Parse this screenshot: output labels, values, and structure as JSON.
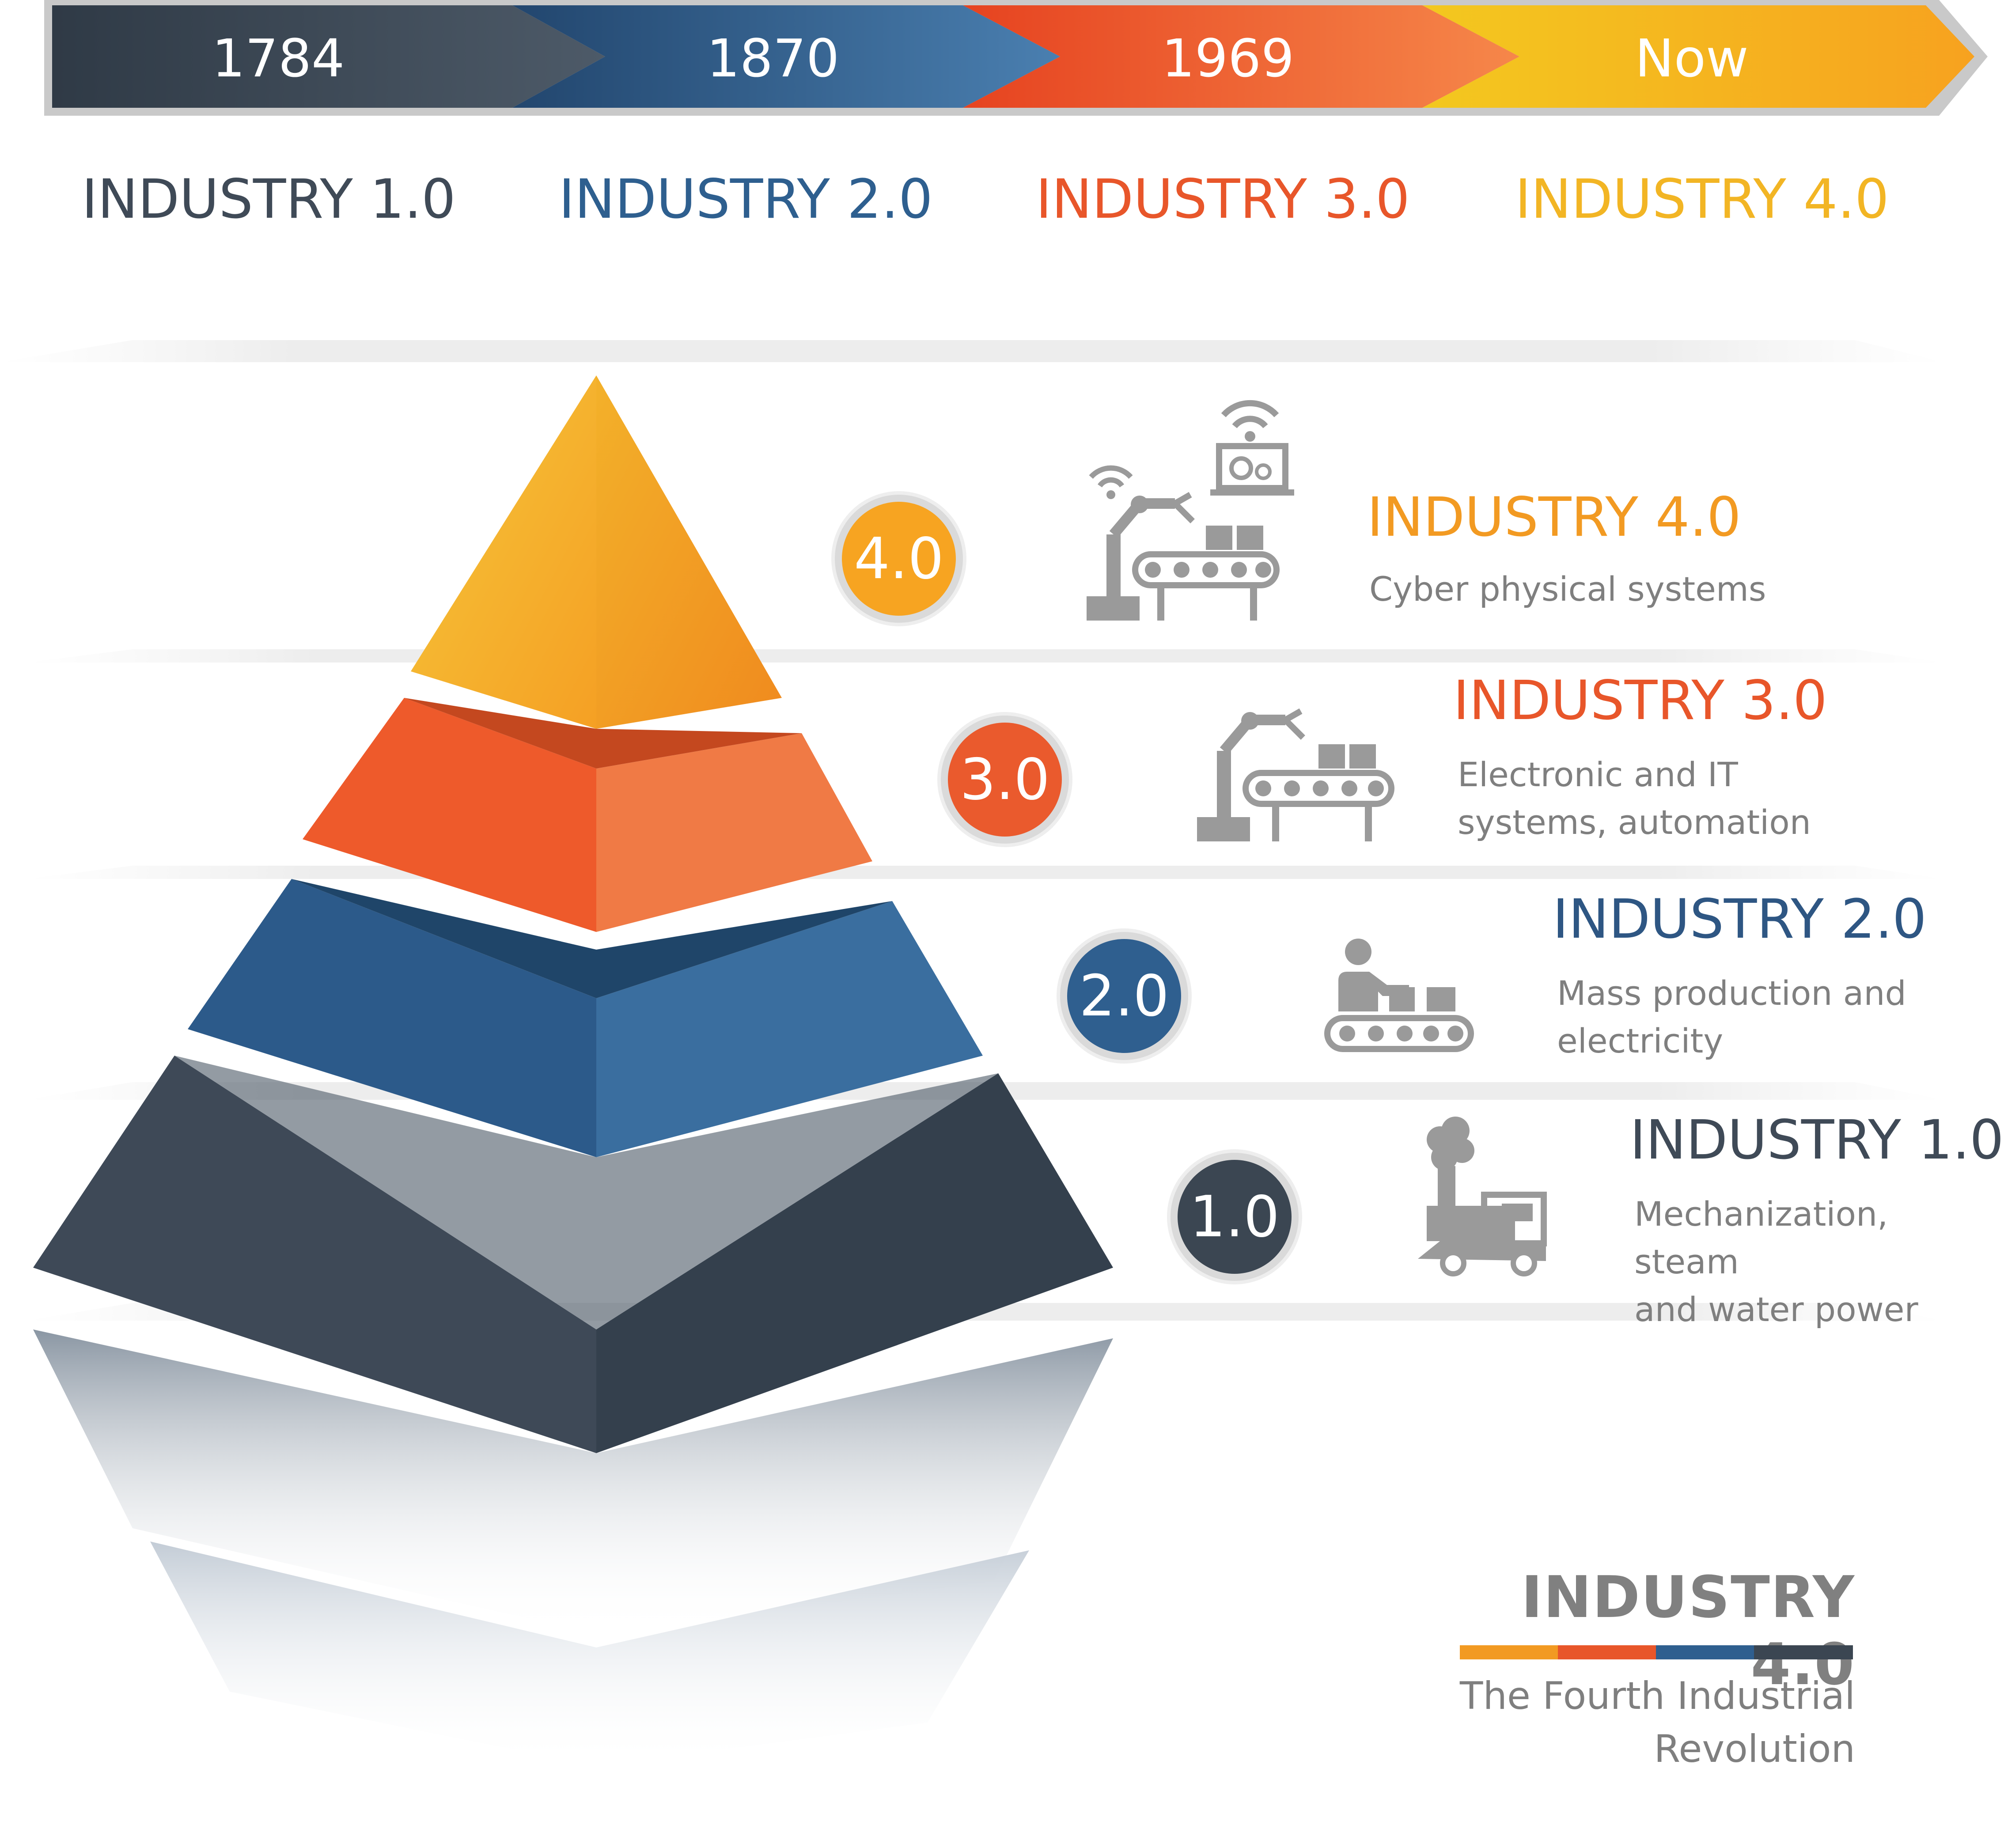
{
  "timeline": {
    "eras": [
      {
        "year": "1784",
        "color": "#3b4652"
      },
      {
        "year": "1870",
        "color": "#2f5f8f"
      },
      {
        "year": "1969",
        "color": "#ea5a2d"
      },
      {
        "year": "Now",
        "color": "#f3b21f"
      }
    ],
    "titles": [
      {
        "text": "INDUSTRY 1.0",
        "color": "#3f4a57"
      },
      {
        "text": "INDUSTRY 2.0",
        "color": "#2e5f8f"
      },
      {
        "text": "INDUSTRY 3.0",
        "color": "#e8562a"
      },
      {
        "text": "INDUSTRY 4.0",
        "color": "#f2b524"
      }
    ]
  },
  "levels": [
    {
      "badge": "4.0",
      "title": "INDUSTRY 4.0",
      "description": "Cyber physical systems",
      "title_color": "#f29a22",
      "badge_color": "#f7a421",
      "icon": "robot-arm-network-icon"
    },
    {
      "badge": "3.0",
      "title": "INDUSTRY 3.0",
      "description": "Electronic and IT\nsystems, automation",
      "title_color": "#e8562a",
      "badge_color": "#ea5a2d",
      "icon": "robot-arm-conveyor-icon"
    },
    {
      "badge": "2.0",
      "title": "INDUSTRY 2.0",
      "description": "Mass production and\nelectricity",
      "title_color": "#2e5683",
      "badge_color": "#2f5f8f",
      "icon": "worker-conveyor-icon"
    },
    {
      "badge": "1.0",
      "title": "INDUSTRY 1.0",
      "description": "Mechanization, steam\nand water power",
      "title_color": "#3f4a57",
      "badge_color": "#3b4652",
      "icon": "steam-locomotive-icon"
    }
  ],
  "brand": {
    "title": "INDUSTRY 4.0",
    "subtitle": "The Fourth Industrial\nRevolution",
    "stripe_colors": [
      "#f29a22",
      "#e8562a",
      "#2f5f8f",
      "#3b4652"
    ]
  }
}
